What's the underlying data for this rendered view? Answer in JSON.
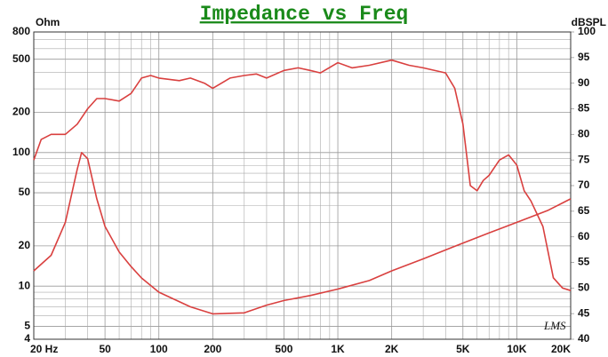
{
  "chart_data": {
    "type": "line",
    "title": "Impedance vs Freq",
    "ylabel": "Ohm",
    "y2label": "dBSPL",
    "watermark": "LMS",
    "xscale": "log",
    "yscale": "log",
    "grid": true,
    "xlim": [
      20,
      20000
    ],
    "ylim": [
      4,
      800
    ],
    "y2lim": [
      40,
      100
    ],
    "xticks": [
      {
        "value": 20,
        "label": "20 Hz"
      },
      50,
      100,
      200,
      500,
      {
        "value": 1000,
        "label": "1K"
      },
      {
        "value": 2000,
        "label": "2K"
      },
      {
        "value": 5000,
        "label": "5K"
      },
      {
        "value": 10000,
        "label": "10K"
      },
      {
        "value": 20000,
        "label": "20K"
      }
    ],
    "yticks": [
      4,
      5,
      10,
      20,
      50,
      100,
      200,
      500,
      800
    ],
    "y2ticks": [
      40,
      45,
      50,
      55,
      60,
      65,
      70,
      75,
      80,
      85,
      90,
      95,
      100
    ],
    "xgrid": [
      30,
      40,
      60,
      70,
      80,
      90,
      300,
      400,
      600,
      700,
      800,
      900,
      3000,
      4000,
      6000,
      7000,
      8000,
      9000
    ],
    "ygrid": [
      6,
      7,
      8,
      9,
      30,
      40,
      60,
      70,
      80,
      90,
      300,
      400,
      600,
      700
    ],
    "series": [
      {
        "color": "#d9403f",
        "axis": "y",
        "x": [
          20,
          25,
          30,
          35,
          37,
          40,
          45,
          50,
          60,
          70,
          80,
          100,
          150,
          200,
          300,
          400,
          500,
          700,
          1000,
          1500,
          2000,
          3000,
          5000,
          7000,
          10000,
          15000,
          20000
        ],
        "values": [
          13,
          17,
          30,
          75,
          100,
          90,
          45,
          28,
          18,
          14,
          11.5,
          9,
          7,
          6.2,
          6.3,
          7.2,
          7.8,
          8.5,
          9.5,
          11,
          13,
          16,
          21,
          25,
          30,
          37,
          45
        ]
      },
      {
        "color": "#d9403f",
        "axis": "y2",
        "x": [
          20,
          22,
          25,
          30,
          35,
          40,
          45,
          50,
          60,
          70,
          80,
          90,
          100,
          130,
          150,
          180,
          200,
          250,
          300,
          350,
          400,
          500,
          600,
          700,
          800,
          1000,
          1200,
          1500,
          2000,
          2500,
          3000,
          4000,
          4500,
          5000,
          5500,
          6000,
          6500,
          7000,
          8000,
          9000,
          10000,
          11000,
          12000,
          14000,
          16000,
          18000,
          20000
        ],
        "values": [
          75,
          79,
          80,
          80,
          82,
          85,
          87,
          87,
          86.5,
          88,
          91,
          91.5,
          91,
          90.5,
          91,
          90,
          89,
          91,
          91.5,
          91.8,
          91,
          92.5,
          93,
          92.5,
          92,
          94,
          93,
          93.5,
          94.5,
          93.5,
          93,
          92,
          89,
          82,
          70,
          69,
          71,
          72,
          75,
          76,
          74,
          69,
          67,
          62,
          52,
          50,
          49.5
        ]
      }
    ]
  }
}
